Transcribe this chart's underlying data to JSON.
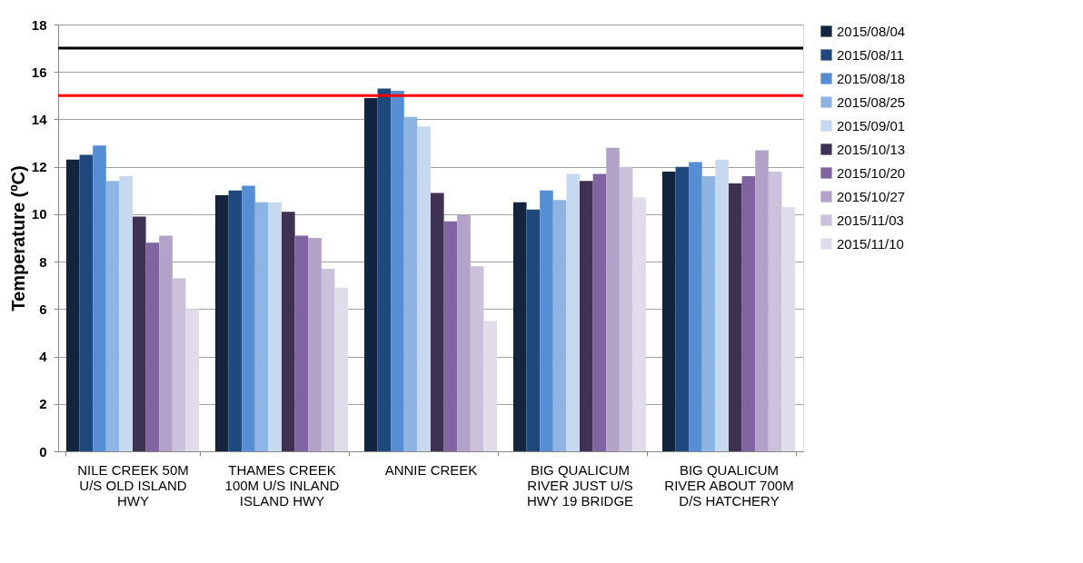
{
  "chart_data": {
    "type": "bar",
    "ylabel": "Temperature (ºC)",
    "categories": [
      "NILE CREEK 50M U/S OLD ISLAND HWY",
      "THAMES CREEK 100M U/S INLAND ISLAND HWY",
      "ANNIE CREEK",
      "BIG QUALICUM RIVER JUST U/S HWY 19 BRIDGE",
      "BIG QUALICUM RIVER ABOUT 700M D/S HATCHERY"
    ],
    "series": [
      {
        "name": "2015/08/04",
        "color": "#13243f",
        "values": [
          12.3,
          10.8,
          14.9,
          10.5,
          11.8
        ]
      },
      {
        "name": "2015/08/11",
        "color": "#1f497d",
        "values": [
          12.5,
          11.0,
          15.3,
          10.2,
          12.0
        ]
      },
      {
        "name": "2015/08/18",
        "color": "#558ed5",
        "values": [
          12.9,
          11.2,
          15.2,
          11.0,
          12.2
        ]
      },
      {
        "name": "2015/08/25",
        "color": "#8eb4e3",
        "values": [
          11.4,
          10.5,
          14.1,
          10.6,
          11.6
        ]
      },
      {
        "name": "2015/09/01",
        "color": "#c6d9f1",
        "values": [
          11.6,
          10.5,
          13.7,
          11.7,
          12.3
        ]
      },
      {
        "name": "2015/10/13",
        "color": "#3f3151",
        "values": [
          9.9,
          10.1,
          10.9,
          11.4,
          11.3
        ]
      },
      {
        "name": "2015/10/20",
        "color": "#8064a2",
        "values": [
          8.8,
          9.1,
          9.7,
          11.7,
          11.6
        ]
      },
      {
        "name": "2015/10/27",
        "color": "#b3a2c7",
        "values": [
          9.1,
          9.0,
          10.0,
          12.8,
          12.7
        ]
      },
      {
        "name": "2015/11/03",
        "color": "#ccc1da",
        "values": [
          7.3,
          7.7,
          7.8,
          12.0,
          11.8
        ]
      },
      {
        "name": "2015/11/10",
        "color": "#e0dcea",
        "values": [
          6.0,
          6.9,
          5.5,
          10.7,
          10.3
        ]
      }
    ],
    "ylim": [
      0,
      18
    ],
    "yticks": [
      0,
      2,
      4,
      6,
      8,
      10,
      12,
      14,
      16,
      18
    ],
    "grid": "y",
    "legend": "right",
    "ref_lines": [
      {
        "axis": "y",
        "value": 17,
        "color": "#000000"
      },
      {
        "axis": "y",
        "value": 15,
        "color": "#ff0000"
      }
    ]
  }
}
